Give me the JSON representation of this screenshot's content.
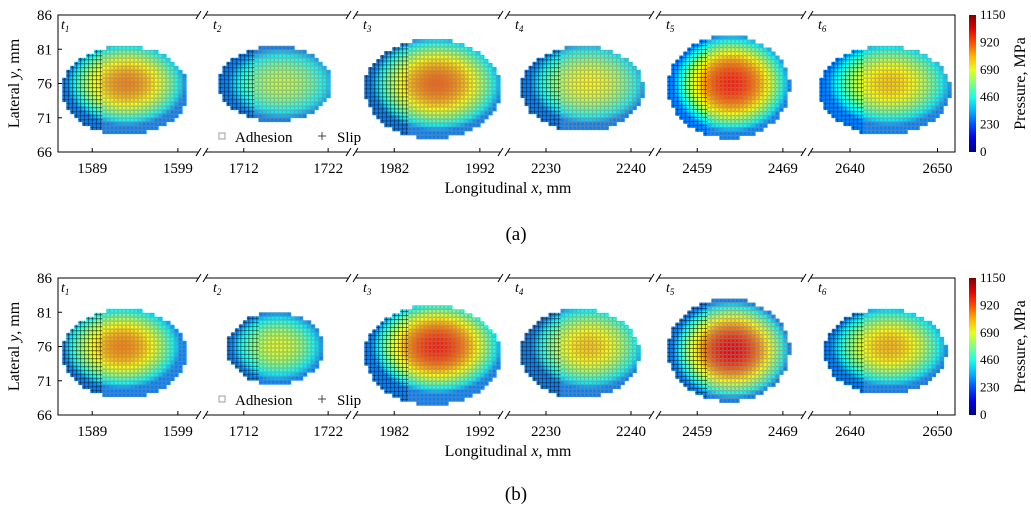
{
  "figure": {
    "panel_labels": [
      "(a)",
      "(b)"
    ],
    "xlabel": "Longitudinal x, mm",
    "ylabel": "Lateral y, mm",
    "colorbar_label": "Pressure, MPa",
    "legend": [
      "Adhesion",
      "Slip"
    ]
  },
  "chart_data": [
    {
      "type": "heatmap",
      "panel": "(a)",
      "title": "",
      "xlabel": "Longitudinal x, mm",
      "ylabel": "Lateral y, mm",
      "ylim": [
        66,
        86
      ],
      "yticks": [
        66,
        71,
        76,
        81,
        86
      ],
      "grid": false,
      "legend": {
        "entries": [
          "Adhesion",
          "Slip"
        ],
        "placement": "lower-left inside t2 subplot"
      },
      "colorbar": {
        "label": "Pressure, MPa",
        "range": [
          0,
          1150
        ],
        "ticks": [
          0,
          230,
          460,
          690,
          920,
          1150
        ]
      },
      "subplots": [
        {
          "time": "t1",
          "xlim": [
            1585,
            1601
          ],
          "xticks": [
            1589,
            1599
          ],
          "x_range": [
            1585.5,
            1600.2
          ],
          "y_range": [
            68.5,
            81.5
          ],
          "center": [
            1593.0,
            76.0
          ],
          "peak_pressure": 860
        },
        {
          "time": "t2",
          "xlim": [
            1708,
            1724
          ],
          "xticks": [
            1712,
            1722
          ],
          "x_range": [
            1709.0,
            1722.5
          ],
          "y_range": [
            70.5,
            81.5
          ],
          "center": [
            1716.5,
            76.0
          ],
          "peak_pressure": 640
        },
        {
          "time": "t3",
          "xlim": [
            1978,
            1994
          ],
          "xticks": [
            1982,
            1992
          ],
          "x_range": [
            1978.5,
            1994.5
          ],
          "y_range": [
            68.0,
            82.5
          ],
          "center": [
            1987.0,
            76.0
          ],
          "peak_pressure": 900
        },
        {
          "time": "t4",
          "xlim": [
            2226,
            2242
          ],
          "xticks": [
            2230,
            2240
          ],
          "x_range": [
            2227.0,
            2241.5
          ],
          "y_range": [
            69.0,
            81.5
          ],
          "center": [
            2235.0,
            76.0
          ],
          "peak_pressure": 720
        },
        {
          "time": "t5",
          "xlim": [
            2455,
            2471
          ],
          "xticks": [
            2459,
            2469
          ],
          "x_range": [
            2455.5,
            2469.8
          ],
          "y_range": [
            68.0,
            83.0
          ],
          "center": [
            2463.0,
            76.0
          ],
          "peak_pressure": 980
        },
        {
          "time": "t6",
          "xlim": [
            2636,
            2652
          ],
          "xticks": [
            2640,
            2650
          ],
          "x_range": [
            2636.5,
            2651.5
          ],
          "y_range": [
            68.5,
            81.5
          ],
          "center": [
            2644.5,
            76.0
          ],
          "peak_pressure": 780
        }
      ]
    },
    {
      "type": "heatmap",
      "panel": "(b)",
      "title": "",
      "xlabel": "Longitudinal x, mm",
      "ylabel": "Lateral y, mm",
      "ylim": [
        66,
        86
      ],
      "yticks": [
        66,
        71,
        76,
        81,
        86
      ],
      "grid": false,
      "legend": {
        "entries": [
          "Adhesion",
          "Slip"
        ],
        "placement": "lower-left inside t2 subplot"
      },
      "colorbar": {
        "label": "Pressure, MPa",
        "range": [
          0,
          1150
        ],
        "ticks": [
          0,
          230,
          460,
          690,
          920,
          1150
        ]
      },
      "subplots": [
        {
          "time": "t1",
          "xlim": [
            1585,
            1601
          ],
          "xticks": [
            1589,
            1599
          ],
          "x_range": [
            1585.5,
            1600.0
          ],
          "y_range": [
            68.5,
            81.5
          ],
          "center": [
            1592.5,
            76.0
          ],
          "peak_pressure": 860
        },
        {
          "time": "t2",
          "xlim": [
            1708,
            1724
          ],
          "xticks": [
            1712,
            1722
          ],
          "x_range": [
            1710.0,
            1721.5
          ],
          "y_range": [
            70.5,
            81.0
          ],
          "center": [
            1716.0,
            76.0
          ],
          "peak_pressure": 680
        },
        {
          "time": "t3",
          "xlim": [
            1978,
            1994
          ],
          "xticks": [
            1982,
            1992
          ],
          "x_range": [
            1978.5,
            1994.5
          ],
          "y_range": [
            67.5,
            82.0
          ],
          "center": [
            1987.0,
            76.0
          ],
          "peak_pressure": 980
        },
        {
          "time": "t4",
          "xlim": [
            2226,
            2242
          ],
          "xticks": [
            2230,
            2240
          ],
          "x_range": [
            2227.0,
            2241.0
          ],
          "y_range": [
            68.5,
            81.5
          ],
          "center": [
            2235.0,
            76.0
          ],
          "peak_pressure": 780
        },
        {
          "time": "t5",
          "xlim": [
            2455,
            2471
          ],
          "xticks": [
            2459,
            2469
          ],
          "x_range": [
            2455.5,
            2469.8
          ],
          "y_range": [
            68.0,
            83.0
          ],
          "center": [
            2463.0,
            75.5
          ],
          "peak_pressure": 1020
        },
        {
          "time": "t6",
          "xlim": [
            2636,
            2652
          ],
          "xticks": [
            2640,
            2650
          ],
          "x_range": [
            2637.0,
            2651.0
          ],
          "y_range": [
            69.0,
            81.5
          ],
          "center": [
            2644.5,
            76.0
          ],
          "peak_pressure": 800
        }
      ]
    }
  ]
}
